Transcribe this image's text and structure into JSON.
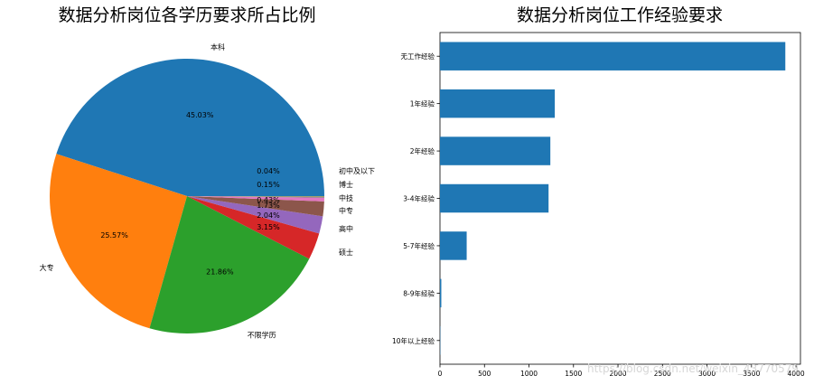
{
  "chart_data": [
    {
      "type": "pie",
      "title": "数据分析岗位各学历要求所占比例",
      "categories": [
        "本科",
        "大专",
        "不限学历",
        "硕士",
        "高中",
        "中专",
        "中技",
        "博士",
        "初中及以下"
      ],
      "values": [
        45.03,
        25.57,
        21.86,
        3.15,
        2.04,
        1.73,
        0.43,
        0.15,
        0.04
      ],
      "value_labels": [
        "45.03%",
        "25.57%",
        "21.86%",
        "3.15%",
        "2.04%",
        "1.73%",
        "0.43%",
        "0.15%",
        "0.04%"
      ],
      "colors": [
        "#1f77b4",
        "#ff7f0e",
        "#2ca02c",
        "#d62728",
        "#9467bd",
        "#8c564b",
        "#e377c2",
        "#7f7f7f",
        "#bcbd22"
      ],
      "start_angle": 0,
      "direction": "counterclockwise"
    },
    {
      "type": "bar",
      "orientation": "horizontal",
      "title": "数据分析岗位工作经验要求",
      "categories": [
        "无工作经验",
        "1年经验",
        "2年经验",
        "3-4年经验",
        "5-7年经验",
        "8-9年经验",
        "10年以上经验"
      ],
      "values": [
        3880,
        1290,
        1240,
        1220,
        300,
        15,
        3
      ],
      "xlim": [
        0,
        4050
      ],
      "xticks": [
        "0",
        "500",
        "1000",
        "1500",
        "2000",
        "2500",
        "3000",
        "3500",
        "4000"
      ],
      "color": "#1f77b4",
      "grid": false
    }
  ],
  "watermark": "https://blog.csdn.net/weixin_43770579"
}
